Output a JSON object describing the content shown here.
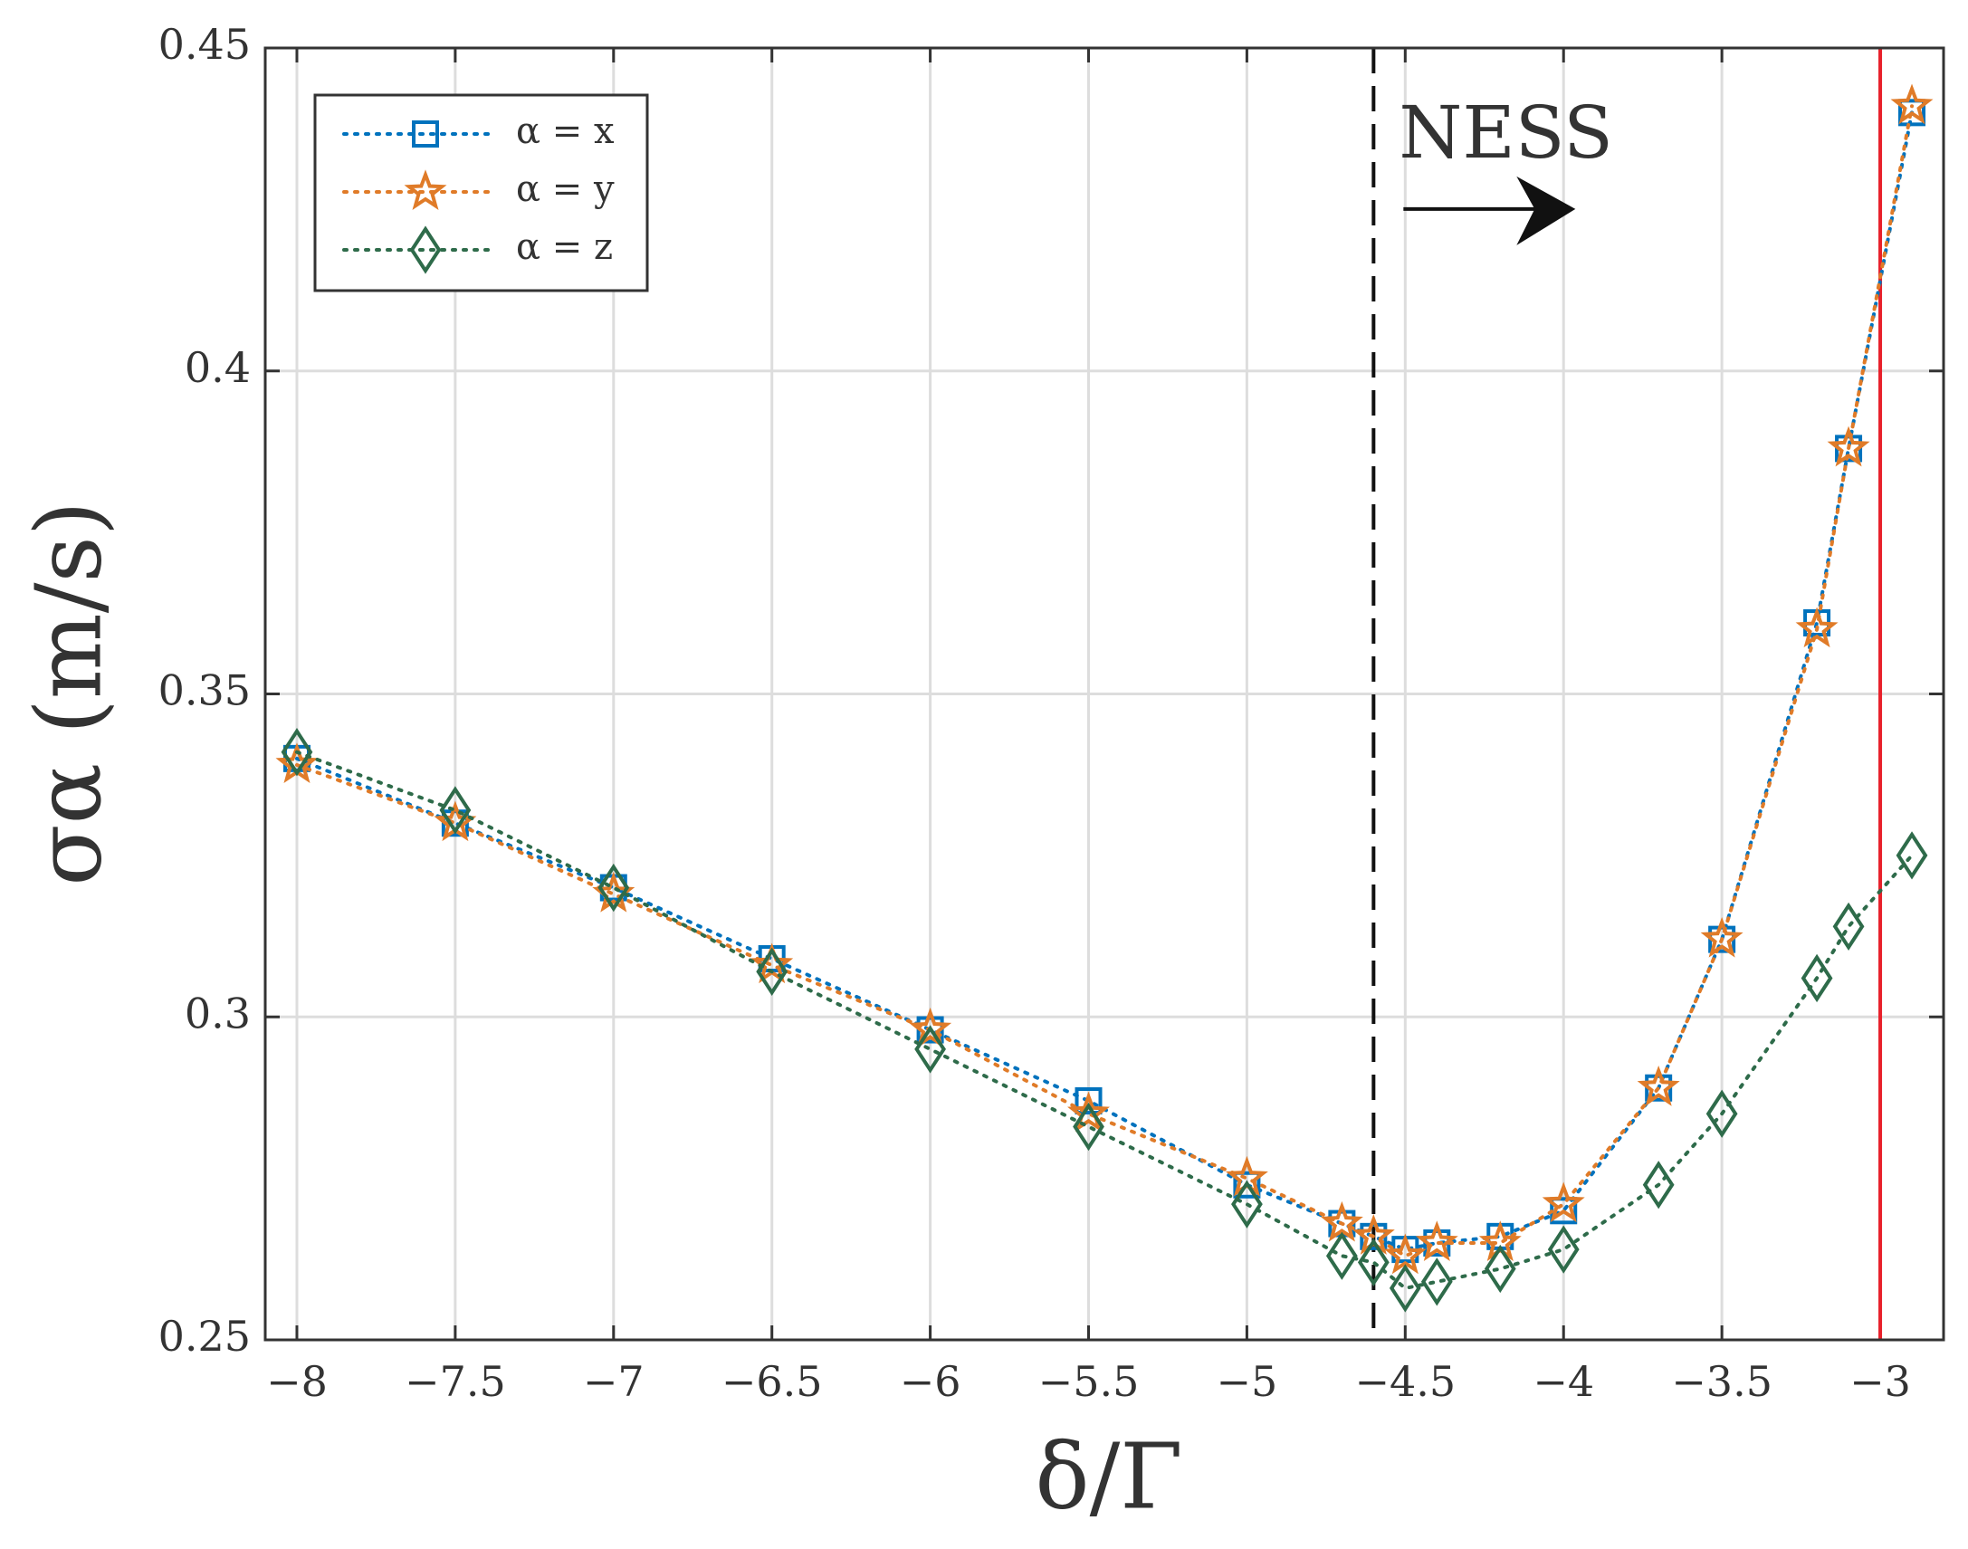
{
  "chart_data": {
    "type": "line",
    "x": [
      -8,
      -7.5,
      -7,
      -6.5,
      -6,
      -5.5,
      -5,
      -4.7,
      -4.6,
      -4.5,
      -4.4,
      -4.2,
      -4,
      -3.7,
      -3.5,
      -3.2,
      -3.1,
      -2.9
    ],
    "series": [
      {
        "name": "α = x",
        "color": "#0072bd",
        "marker": "square",
        "values": [
          0.34,
          0.33,
          0.32,
          0.309,
          0.298,
          0.287,
          0.274,
          0.268,
          0.266,
          0.264,
          0.265,
          0.266,
          0.27,
          0.289,
          0.312,
          0.361,
          0.388,
          0.44
        ]
      },
      {
        "name": "α = y",
        "color": "#e07b28",
        "marker": "star",
        "values": [
          0.339,
          0.33,
          0.319,
          0.308,
          0.298,
          0.285,
          0.275,
          0.268,
          0.266,
          0.263,
          0.265,
          0.265,
          0.271,
          0.289,
          0.312,
          0.36,
          0.388,
          0.441
        ]
      },
      {
        "name": "α = z",
        "color": "#2e6b4a",
        "marker": "diamond",
        "values": [
          0.341,
          0.332,
          0.32,
          0.307,
          0.295,
          0.283,
          0.271,
          0.263,
          0.262,
          0.258,
          0.259,
          0.261,
          0.264,
          0.274,
          0.285,
          0.306,
          0.314,
          0.325
        ]
      }
    ],
    "xlabel": "δ/Γ",
    "ylabel": "σα (m/s)",
    "xlim": [
      -8.1,
      -2.8
    ],
    "ylim": [
      0.25,
      0.45
    ],
    "xticks": [
      {
        "value": -8,
        "label": "−8"
      },
      {
        "value": -7.5,
        "label": "−7.5"
      },
      {
        "value": -7,
        "label": "−7"
      },
      {
        "value": -6.5,
        "label": "−6.5"
      },
      {
        "value": -6,
        "label": "−6"
      },
      {
        "value": -5.5,
        "label": "−5.5"
      },
      {
        "value": -5,
        "label": "−5"
      },
      {
        "value": -4.5,
        "label": "−4.5"
      },
      {
        "value": -4,
        "label": "−4"
      },
      {
        "value": -3.5,
        "label": "−3.5"
      },
      {
        "value": -3,
        "label": "−3"
      }
    ],
    "yticks": [
      0.25,
      0.3,
      0.35,
      0.4,
      0.45
    ],
    "grid": true,
    "legend": "upper left",
    "vlines": [
      {
        "x": -4.6,
        "color": "#111111",
        "style": "dashed"
      },
      {
        "x": -3,
        "color": "#e8202a",
        "style": "solid"
      }
    ],
    "annotation": {
      "text": "NESS",
      "x": -4.52,
      "y": 0.436
    }
  }
}
